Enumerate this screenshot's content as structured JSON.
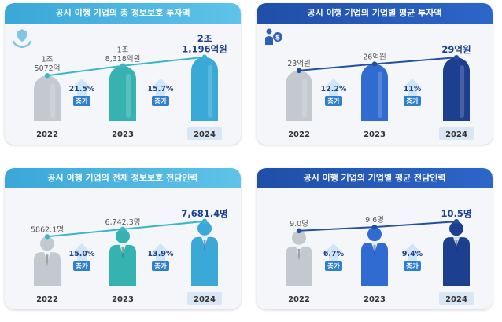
{
  "colors": {
    "gray": "#c4c9cf",
    "teal": "#36b3b0",
    "light_blue": "#3aa9d8",
    "royal_blue": "#2f6bd0",
    "navy": "#1d3f8f",
    "arrow": "#5aa9df",
    "trend_line_light": "#3bb5c9",
    "trend_line_dark": "#244f9e"
  },
  "chart_data": [
    {
      "id": "p1",
      "type": "bar",
      "title": "공시 이행 기업의 총 정보보호 투자액",
      "icon": "hand-shield-icon",
      "shape": "capsule",
      "categories": [
        "2022",
        "2023",
        "2024"
      ],
      "values": [
        15072,
        18318,
        21196
      ],
      "value_labels": [
        "1조\n5072억",
        "1조\n8,318억원",
        "2조\n1,196억원"
      ],
      "growth": [
        {
          "pct": "21.5%",
          "label": "증가"
        },
        {
          "pct": "15.7%",
          "label": "증가"
        }
      ],
      "colors": [
        "#c4c9cf",
        "#36b3b0",
        "#3aa9d8"
      ],
      "line_color": "#3bb5c9",
      "ylim": [
        0,
        24000
      ]
    },
    {
      "id": "p2",
      "type": "bar",
      "title": "공시 이행 기업의 기업별 평균 투자액",
      "icon": "person-money-icon",
      "shape": "capsule",
      "categories": [
        "2022",
        "2023",
        "2024"
      ],
      "values": [
        23,
        26,
        29
      ],
      "value_labels": [
        "23억원",
        "26억원",
        "29억원"
      ],
      "growth": [
        {
          "pct": "12.2%",
          "label": "증가"
        },
        {
          "pct": "11%",
          "label": "증가"
        }
      ],
      "colors": [
        "#c4c9cf",
        "#2f6bd0",
        "#1d3f8f"
      ],
      "line_color": "#244f9e",
      "ylim": [
        0,
        33
      ]
    },
    {
      "id": "p3",
      "type": "bar",
      "title": "공시 이행 기업의 전체 정보보호 전담인력",
      "shape": "person",
      "categories": [
        "2022",
        "2023",
        "2024"
      ],
      "values": [
        5862.1,
        6742.3,
        7681.4
      ],
      "value_labels": [
        "5862.1명",
        "6,742.3명",
        "7,681.4명"
      ],
      "growth": [
        {
          "pct": "15.0%",
          "label": "증가"
        },
        {
          "pct": "13.9%",
          "label": "증가"
        }
      ],
      "colors": [
        "#c4c9cf",
        "#36b3b0",
        "#3aa9d8"
      ],
      "line_color": "#3bb5c9",
      "ylim": [
        0,
        8600
      ]
    },
    {
      "id": "p4",
      "type": "bar",
      "title": "공시 이행 기업의 기업별 평균 전담인력",
      "shape": "person",
      "categories": [
        "2022",
        "2023",
        "2024"
      ],
      "values": [
        9.0,
        9.6,
        10.5
      ],
      "value_labels": [
        "9.0명",
        "9.6명",
        "10.5명"
      ],
      "growth": [
        {
          "pct": "6.7%",
          "label": "증가"
        },
        {
          "pct": "9.4%",
          "label": "증가"
        }
      ],
      "colors": [
        "#c4c9cf",
        "#2f6bd0",
        "#1d3f8f"
      ],
      "line_color": "#244f9e",
      "ylim": [
        0,
        11.8
      ]
    }
  ]
}
